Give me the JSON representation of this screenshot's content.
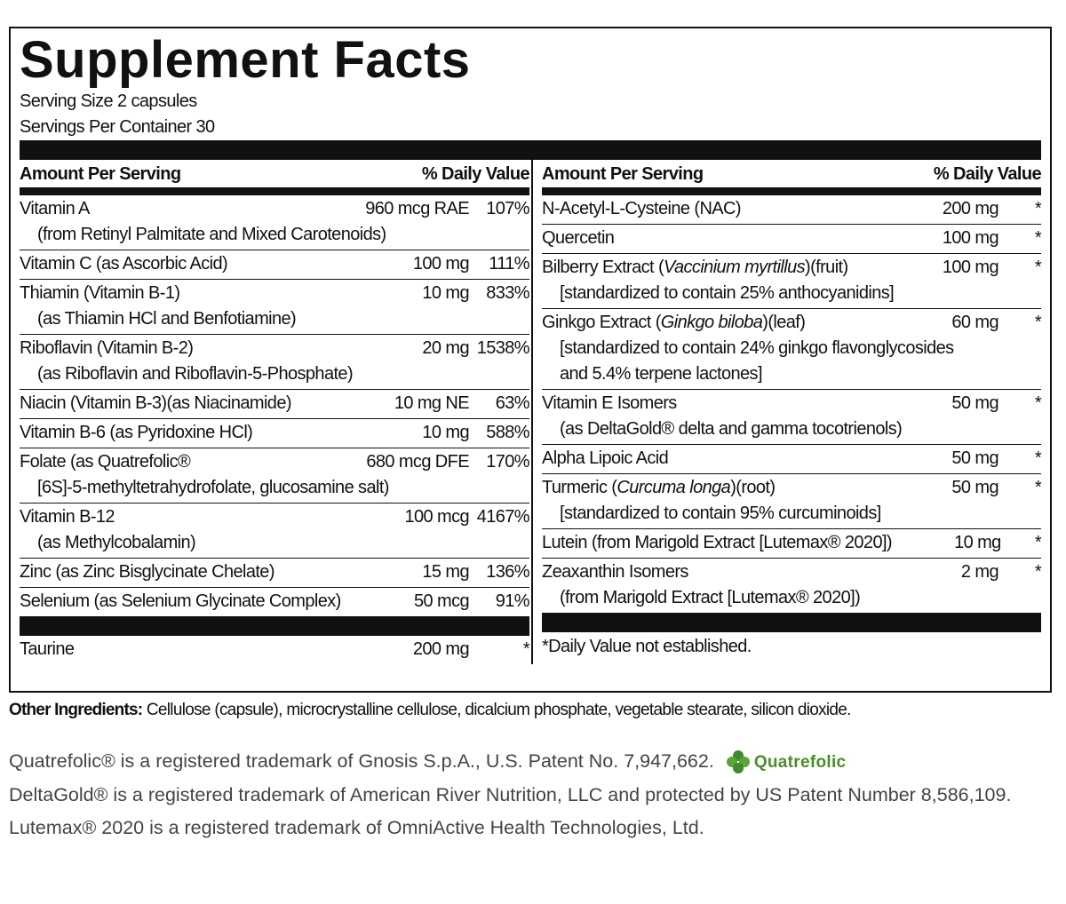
{
  "title": "Supplement Facts",
  "serving_size": "Serving Size 2 capsules",
  "servings_per_container": "Servings Per Container 30",
  "left": {
    "header": [
      "Amount Per Serving",
      "% Daily Value"
    ],
    "rows": [
      {
        "name": "Vitamin A",
        "sub": "(from Retinyl Palmitate and Mixed Carotenoids)",
        "amount": "960 mcg RAE",
        "dv": "107%"
      },
      {
        "name": "Vitamin C (as Ascorbic Acid)",
        "amount": "100 mg",
        "dv": "111%"
      },
      {
        "name": "Thiamin (Vitamin B-1)",
        "sub": "(as Thiamin HCl and Benfotiamine)",
        "amount": "10 mg",
        "dv": "833%"
      },
      {
        "name": "Riboflavin (Vitamin B-2)",
        "sub": "(as Riboflavin and Riboflavin-5-Phosphate)",
        "amount": "20 mg",
        "dv": "1538%"
      },
      {
        "name": "Niacin (Vitamin B-3)(as Niacinamide)",
        "amount": "10 mg NE",
        "dv": "63%"
      },
      {
        "name": "Vitamin B-6 (as Pyridoxine HCl)",
        "amount": "10 mg",
        "dv": "588%"
      },
      {
        "name": "Folate (as Quatrefolic®",
        "sub": "[6S]-5-methyltetrahydrofolate, glucosamine salt)",
        "amount": "680 mcg DFE",
        "dv": "170%"
      },
      {
        "name": "Vitamin B-12",
        "sub": "(as Methylcobalamin)",
        "amount": "100 mcg",
        "dv": "4167%"
      },
      {
        "name": "Zinc (as Zinc Bisglycinate Chelate)",
        "amount": "15 mg",
        "dv": "136%"
      },
      {
        "name": "Selenium (as Selenium Glycinate Complex)",
        "amount": "50 mcg",
        "dv": "91%"
      }
    ],
    "after_bar": [
      {
        "name": "Taurine",
        "amount": "200 mg",
        "dv": "*"
      }
    ]
  },
  "right": {
    "header": [
      "Amount Per Serving",
      "% Daily Value"
    ],
    "rows": [
      {
        "name": "N-Acetyl-L-Cysteine (NAC)",
        "amount": "200 mg",
        "dv": "*"
      },
      {
        "name": "Quercetin",
        "amount": "100 mg",
        "dv": "*"
      },
      {
        "name": [
          "Bilberry Extract (",
          "Vaccinium myrtillus",
          ")(fruit)"
        ],
        "sub": "[standardized to contain 25% anthocyanidins]",
        "amount": "100 mg",
        "dv": "*"
      },
      {
        "name": [
          "Ginkgo Extract (",
          "Ginkgo biloba",
          ")(leaf)"
        ],
        "sub": "[standardized to contain 24% ginkgo flavonglycosides and 5.4% terpene lactones]",
        "amount": "60 mg",
        "dv": "*"
      },
      {
        "name": "Vitamin E Isomers",
        "sub": "(as DeltaGold® delta and gamma tocotrienols)",
        "amount": "50 mg",
        "dv": "*"
      },
      {
        "name": "Alpha Lipoic Acid",
        "amount": "50 mg",
        "dv": "*"
      },
      {
        "name": [
          "Turmeric (",
          "Curcuma longa",
          ")(root)"
        ],
        "sub": "[standardized to contain 95% curcuminoids]",
        "amount": "50 mg",
        "dv": "*"
      },
      {
        "name": "Lutein (from Marigold Extract [Lutemax® 2020])",
        "amount": "10 mg",
        "dv": "*"
      },
      {
        "name": "Zeaxanthin Isomers",
        "sub": "(from Marigold Extract [Lutemax® 2020])",
        "amount": "2 mg",
        "dv": "*"
      }
    ],
    "footnote": "*Daily Value not established."
  },
  "other_ingredients": {
    "label": "Other Ingredients:",
    "text": "Cellulose (capsule), microcrystalline cellulose, dicalcium phosphate, vegetable stearate, silicon dioxide."
  },
  "notes": [
    {
      "text": "Quatrefolic® is a registered trademark of Gnosis S.p.A., U.S. Patent No. 7,947,662.",
      "logo": "Quatrefolic"
    },
    {
      "text": "DeltaGold® is a registered trademark of American River Nutrition, LLC and protected by US Patent Number 8,586,109."
    },
    {
      "text": "Lutemax® 2020 is a registered trademark of OmniActive Health Technologies, Ltd."
    }
  ]
}
